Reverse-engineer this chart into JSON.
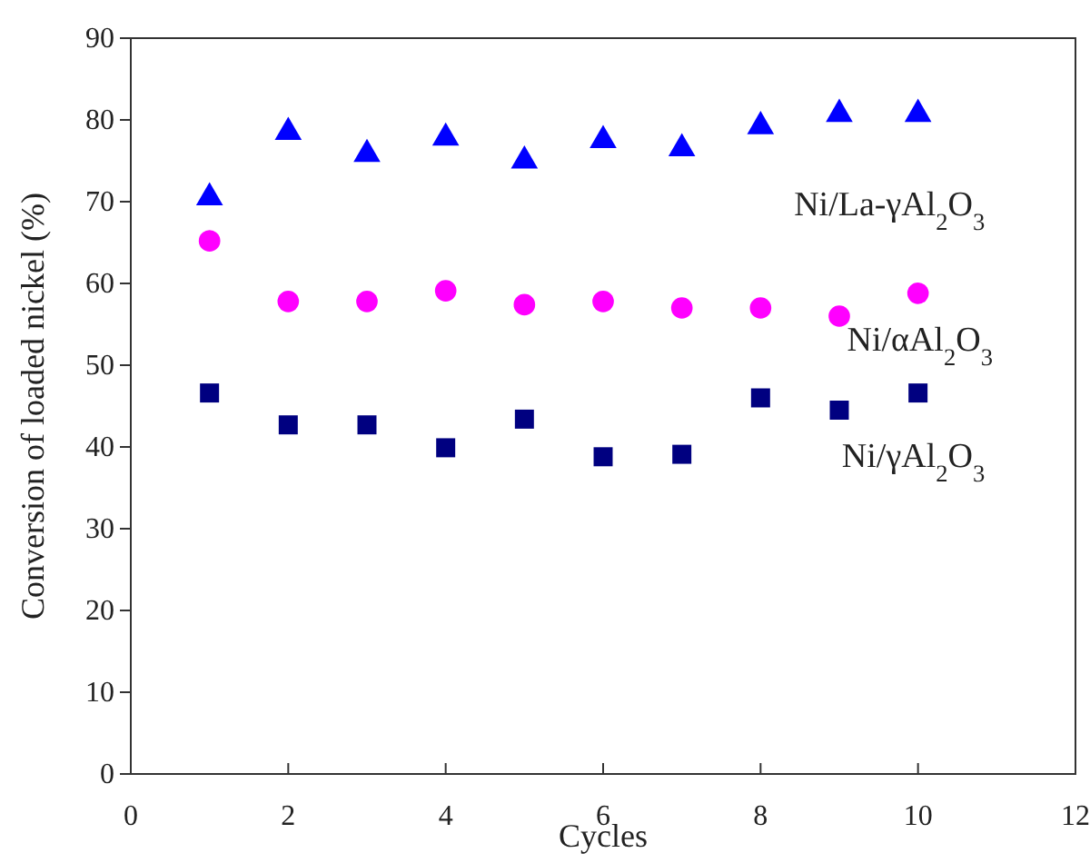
{
  "chart_data": {
    "type": "scatter",
    "xlabel": "Cycles",
    "ylabel": "Conversion of loaded nickel (%)",
    "x": [
      1,
      2,
      3,
      4,
      5,
      6,
      7,
      8,
      9,
      10
    ],
    "series": [
      {
        "name": "Ni/La-γAl$_{2}$O$_{3}$",
        "color": "#0000ff",
        "marker": "triangle",
        "values": [
          70.5,
          78.5,
          75.8,
          77.8,
          75.0,
          77.5,
          76.5,
          79.2,
          80.7,
          80.7
        ]
      },
      {
        "name": "Ni/αAl$_{2}$O$_{3}$",
        "color": "#ff00ff",
        "marker": "circle",
        "values": [
          65.2,
          57.8,
          57.8,
          59.1,
          57.4,
          57.8,
          57.0,
          57.0,
          56.0,
          58.8
        ]
      },
      {
        "name": "Ni/γAl$_{2}$O$_{3}$",
        "color": "#000080",
        "marker": "square",
        "values": [
          46.6,
          42.7,
          42.7,
          39.9,
          43.4,
          38.8,
          39.1,
          46.0,
          44.5,
          46.6
        ]
      }
    ],
    "xlim": [
      0,
      12
    ],
    "xticks": [
      0,
      2,
      4,
      6,
      8,
      10,
      12
    ],
    "ylim": [
      0,
      90
    ],
    "yticks": [
      0,
      10,
      20,
      30,
      40,
      50,
      60,
      70,
      80,
      90
    ],
    "grid": false
  }
}
